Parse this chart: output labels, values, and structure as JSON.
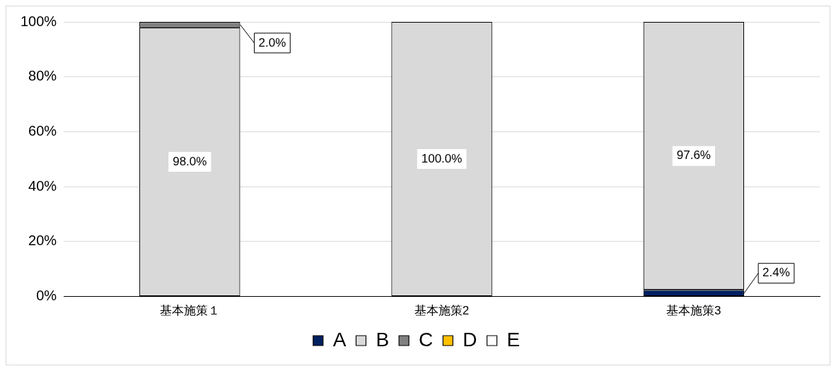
{
  "chart_data": {
    "type": "bar",
    "stacked": true,
    "categories": [
      "基本施策１",
      "基本施策2",
      "基本施策3"
    ],
    "series": [
      {
        "name": "A",
        "color": "#002060",
        "values": [
          0,
          0,
          2.4
        ],
        "value_labels": [
          null,
          null,
          "2.4%"
        ]
      },
      {
        "name": "B",
        "color": "#d9d9d9",
        "values": [
          98.0,
          100.0,
          97.6
        ],
        "value_labels": [
          "98.0%",
          "100.0%",
          "97.6%"
        ]
      },
      {
        "name": "C",
        "color": "#808080",
        "values": [
          2.0,
          0,
          0
        ],
        "value_labels": [
          "2.0%",
          null,
          null
        ]
      },
      {
        "name": "D",
        "color": "#ffc000",
        "values": [
          0,
          0,
          0
        ]
      },
      {
        "name": "E",
        "color": "#ffffff",
        "values": [
          0,
          0,
          0
        ]
      }
    ],
    "ylim": [
      0,
      100
    ],
    "yticks": [
      {
        "value": 0,
        "label": "0%"
      },
      {
        "value": 20,
        "label": "20%"
      },
      {
        "value": 40,
        "label": "40%"
      },
      {
        "value": 60,
        "label": "60%"
      },
      {
        "value": 80,
        "label": "80%"
      },
      {
        "value": 100,
        "label": "100%"
      }
    ],
    "grid": "y",
    "legend": "bottom"
  }
}
